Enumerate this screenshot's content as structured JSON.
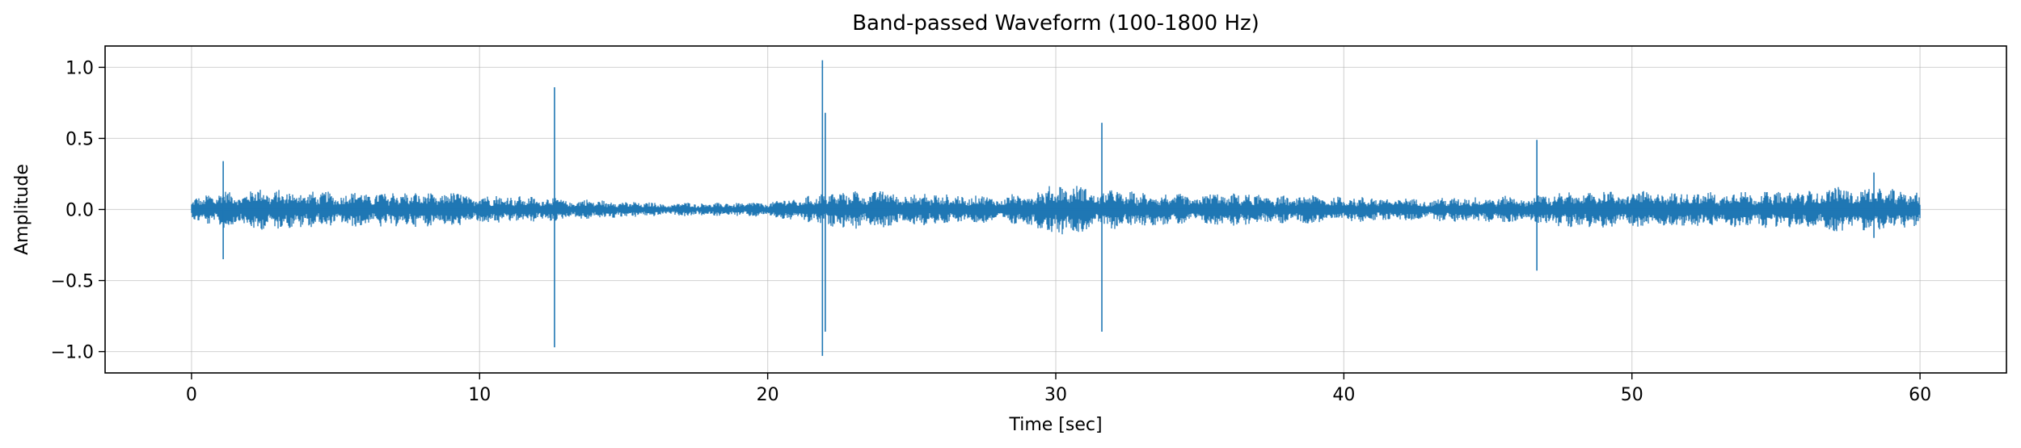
{
  "chart_data": {
    "type": "line",
    "title": "Band-passed Waveform (100-1800 Hz)",
    "xlabel": "Time [sec]",
    "ylabel": "Amplitude",
    "xlim": [
      -3,
      63
    ],
    "ylim": [
      -1.15,
      1.15
    ],
    "xticks": [
      0,
      10,
      20,
      30,
      40,
      50,
      60
    ],
    "yticks": [
      -1.0,
      -0.5,
      0.0,
      0.5,
      1.0
    ],
    "ytick_labels": [
      "−1.0",
      "−0.5",
      "0.0",
      "0.5",
      "1.0"
    ],
    "grid": true,
    "series": [
      {
        "color": "#1f77b4",
        "x_range": [
          0,
          60
        ],
        "envelope": {
          "t": [
            0,
            1,
            2,
            3,
            4,
            5,
            6,
            7,
            8,
            9,
            10,
            11,
            12,
            13,
            14,
            15,
            16,
            17,
            18,
            19,
            20,
            21,
            22,
            23,
            24,
            25,
            26,
            27,
            28,
            29,
            30,
            31,
            32,
            33,
            34,
            35,
            36,
            37,
            38,
            39,
            40,
            41,
            42,
            43,
            44,
            45,
            46,
            47,
            48,
            49,
            50,
            51,
            52,
            53,
            54,
            55,
            56,
            57,
            58,
            59,
            60
          ],
          "amp": [
            0.08,
            0.13,
            0.15,
            0.14,
            0.13,
            0.13,
            0.12,
            0.13,
            0.12,
            0.12,
            0.11,
            0.1,
            0.09,
            0.08,
            0.07,
            0.06,
            0.05,
            0.05,
            0.05,
            0.05,
            0.06,
            0.08,
            0.12,
            0.14,
            0.13,
            0.12,
            0.11,
            0.1,
            0.1,
            0.12,
            0.18,
            0.17,
            0.14,
            0.12,
            0.11,
            0.11,
            0.12,
            0.11,
            0.1,
            0.1,
            0.09,
            0.09,
            0.08,
            0.08,
            0.09,
            0.09,
            0.1,
            0.11,
            0.13,
            0.14,
            0.13,
            0.13,
            0.13,
            0.13,
            0.13,
            0.13,
            0.14,
            0.16,
            0.16,
            0.15,
            0.12
          ]
        },
        "spikes": [
          {
            "t": 1.1,
            "max": 0.34,
            "min": -0.35
          },
          {
            "t": 12.6,
            "max": 0.86,
            "min": -0.97
          },
          {
            "t": 21.9,
            "max": 1.05,
            "min": -1.03
          },
          {
            "t": 22.0,
            "max": 0.68,
            "min": -0.86
          },
          {
            "t": 31.6,
            "max": 0.61,
            "min": -0.86
          },
          {
            "t": 46.7,
            "max": 0.49,
            "min": -0.43
          },
          {
            "t": 58.4,
            "max": 0.26,
            "min": -0.2
          }
        ]
      }
    ]
  }
}
